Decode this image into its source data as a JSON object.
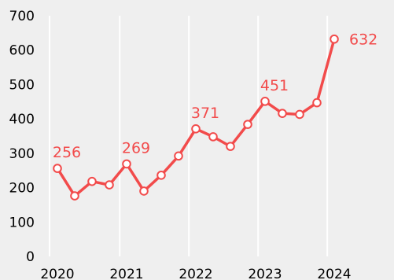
{
  "chart_data": {
    "type": "line",
    "title": "",
    "xlabel": "",
    "ylabel": "",
    "ylim": [
      0,
      700
    ],
    "yticks": [
      0,
      100,
      200,
      300,
      400,
      500,
      600,
      700
    ],
    "xlim": [
      2020,
      2025
    ],
    "xticks": [
      "2020",
      "2021",
      "2022",
      "2023",
      "2024"
    ],
    "grid": "vertical",
    "legend": "none",
    "series": [
      {
        "color": "#f24b4b",
        "marker": "hollow-circle",
        "points": [
          {
            "x": 2020.0,
            "y": 256,
            "label": "256"
          },
          {
            "x": 2020.25,
            "y": 176
          },
          {
            "x": 2020.5,
            "y": 218
          },
          {
            "x": 2020.75,
            "y": 208
          },
          {
            "x": 2021.0,
            "y": 269,
            "label": "269"
          },
          {
            "x": 2021.25,
            "y": 190
          },
          {
            "x": 2021.5,
            "y": 236
          },
          {
            "x": 2021.75,
            "y": 292
          },
          {
            "x": 2022.0,
            "y": 371,
            "label": "371"
          },
          {
            "x": 2022.25,
            "y": 348
          },
          {
            "x": 2022.5,
            "y": 320
          },
          {
            "x": 2022.75,
            "y": 384
          },
          {
            "x": 2023.0,
            "y": 451,
            "label": "451"
          },
          {
            "x": 2023.25,
            "y": 416
          },
          {
            "x": 2023.5,
            "y": 413
          },
          {
            "x": 2023.75,
            "y": 447
          },
          {
            "x": 2024.0,
            "y": 632,
            "label": "632"
          }
        ]
      }
    ]
  },
  "colors": {
    "background": "#efefef",
    "gridline": "#ffffff",
    "line": "#f24b4b",
    "marker_fill": "#ffffff",
    "tick_text": "#000000"
  }
}
